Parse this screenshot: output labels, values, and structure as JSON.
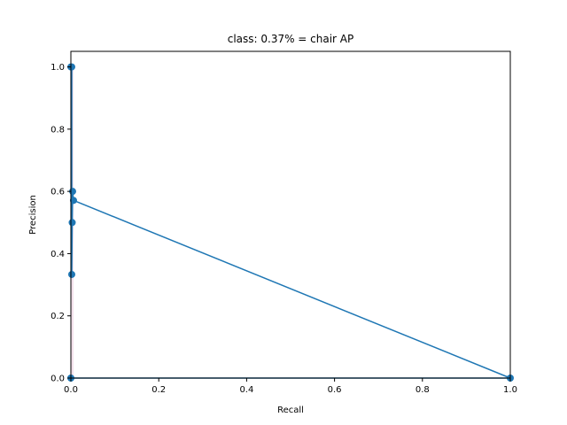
{
  "chart_data": {
    "type": "line",
    "title": "class: 0.37% = chair AP",
    "xlabel": "Recall",
    "ylabel": "Precision",
    "xlim": [
      0.0,
      1.0
    ],
    "ylim": [
      0.0,
      1.05
    ],
    "x_ticks": [
      0.0,
      0.2,
      0.4,
      0.6,
      0.8,
      1.0
    ],
    "x_tick_labels": [
      "0.0",
      "0.2",
      "0.4",
      "0.6",
      "0.8",
      "1.0"
    ],
    "y_ticks": [
      0.0,
      0.2,
      0.4,
      0.6,
      0.8,
      1.0
    ],
    "y_tick_labels": [
      "0.0",
      "0.2",
      "0.4",
      "0.6",
      "0.8",
      "1.0"
    ],
    "grid": false,
    "colors": {
      "line": "#1f77b4",
      "fill": "#e8c3da"
    },
    "series": [
      {
        "values": [
          {
            "x": 0.0,
            "y": 1.0
          },
          {
            "x": 0.002,
            "y": 1.0
          },
          {
            "x": 0.002,
            "y": 0.333
          },
          {
            "x": 0.003,
            "y": 0.5
          },
          {
            "x": 0.004,
            "y": 0.6
          },
          {
            "x": 0.006,
            "y": 0.571
          },
          {
            "x": 1.0,
            "y": 0.0
          },
          {
            "x": 0.0,
            "y": 0.0
          }
        ]
      }
    ]
  }
}
